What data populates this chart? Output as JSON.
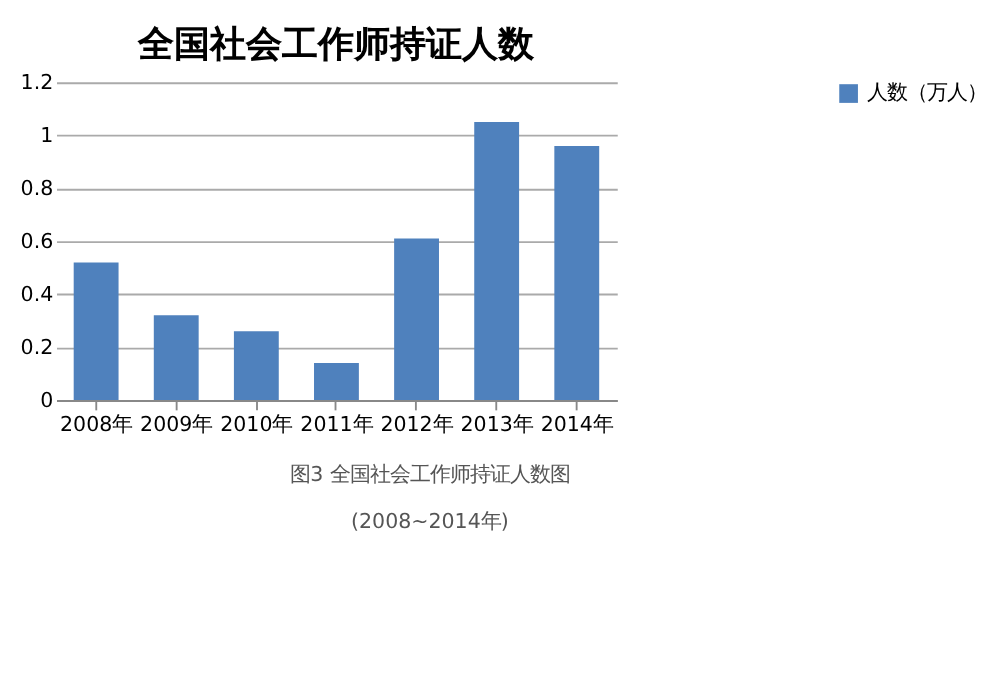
{
  "chart_data": {
    "type": "bar",
    "title": "全国社会工作师持证人数",
    "categories": [
      "2008年",
      "2009年",
      "2010年",
      "2011年",
      "2012年",
      "2013年",
      "2014年"
    ],
    "series": [
      {
        "name": "人数（万人）",
        "color": "#4f81bd",
        "values": [
          0.52,
          0.32,
          0.26,
          0.14,
          0.61,
          1.05,
          0.96
        ]
      }
    ],
    "ylim": [
      0,
      1.2
    ],
    "yticks": [
      0,
      0.2,
      0.4,
      0.6,
      0.8,
      1,
      1.2
    ],
    "grid": "y",
    "legend": "right",
    "annotations": [
      "图3 全国社会工作师持证人数图",
      "(2008~2014年)"
    ]
  }
}
